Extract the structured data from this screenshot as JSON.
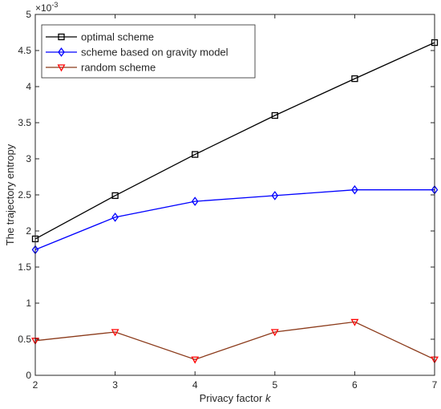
{
  "chart_data": {
    "type": "line",
    "title": "",
    "xlabel": "Privacy factor",
    "xlabel_var": "k",
    "ylabel": "The trajectory entropy",
    "y_exponent_label": "×10",
    "y_exponent_power": "-3",
    "xlim": [
      2,
      7
    ],
    "ylim": [
      0,
      5
    ],
    "x_ticks": [
      2,
      3,
      4,
      5,
      6,
      7
    ],
    "x_tick_labels": [
      "2",
      "3",
      "4",
      "5",
      "6",
      "7"
    ],
    "y_ticks": [
      0,
      0.5,
      1,
      1.5,
      2,
      2.5,
      3,
      3.5,
      4,
      4.5,
      5
    ],
    "y_tick_labels": [
      "0",
      "0.5",
      "1",
      "1.5",
      "2",
      "2.5",
      "3",
      "3.5",
      "4",
      "4.5",
      "5"
    ],
    "grid": false,
    "legend_position": "top-left",
    "x": [
      2,
      3,
      4,
      5,
      6,
      7
    ],
    "series": [
      {
        "name": "optimal scheme",
        "color": "#000000",
        "marker": "square",
        "values": [
          1.89,
          2.49,
          3.06,
          3.6,
          4.11,
          4.61
        ]
      },
      {
        "name": "scheme based on gravity model",
        "color": "#0000ff",
        "marker": "diamond",
        "values": [
          1.74,
          2.19,
          2.41,
          2.49,
          2.57,
          2.57
        ]
      },
      {
        "name": "random scheme",
        "color": "#ff0000",
        "line_color": "#8b3a1a",
        "marker": "triangle-down",
        "values": [
          0.48,
          0.6,
          0.22,
          0.6,
          0.74,
          0.22
        ]
      }
    ]
  }
}
